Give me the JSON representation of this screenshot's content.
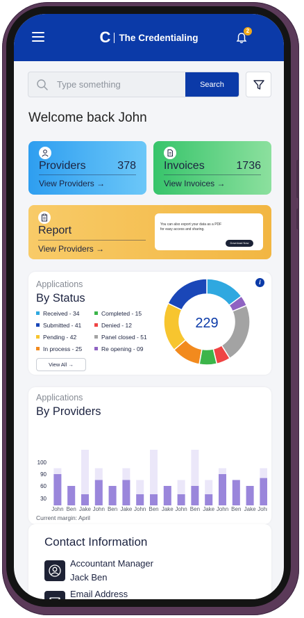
{
  "header": {
    "brand": "The Credentialing",
    "notification_count": "2"
  },
  "search": {
    "placeholder": "Type something",
    "button_label": "Search"
  },
  "welcome": "Welcome back John",
  "cards": {
    "providers": {
      "title": "Providers",
      "value": "378",
      "link": "View Providers →"
    },
    "invoices": {
      "title": "Invoices",
      "value": "1736",
      "link": "View Invoices →"
    },
    "report": {
      "title": "Report",
      "link": "View Providers →",
      "note": "You can also export your data as a PDF for easy access and sharing.",
      "download_label": "Download Now"
    }
  },
  "status_panel": {
    "kicker": "Applications",
    "heading": "By Status",
    "total": "229",
    "view_all": "View All →",
    "legend": [
      {
        "label": "Received - 34",
        "color": "#2fa8e0"
      },
      {
        "label": "Completed - 15",
        "color": "#3cb54a"
      },
      {
        "label": "Submitted - 41",
        "color": "#1a47b8"
      },
      {
        "label": "Denied - 12",
        "color": "#ef4444"
      },
      {
        "label": "Pending - 42",
        "color": "#f7c52f"
      },
      {
        "label": "Panel closed - 51",
        "color": "#a3a3a3"
      },
      {
        "label": "In process - 25",
        "color": "#f28a1e"
      },
      {
        "label": "Re opening - 09",
        "color": "#8f63c2"
      }
    ]
  },
  "providers_panel": {
    "kicker": "Applications",
    "heading": "By Providers",
    "footnote": "Current margin: April"
  },
  "chart_data": {
    "type": "bar",
    "categories": [
      "John",
      "Ben",
      "Jake",
      "John",
      "Ben",
      "Jake",
      "John",
      "Ben",
      "Jake",
      "John",
      "Ben",
      "Jake",
      "John",
      "Ben",
      "Jake",
      "John"
    ],
    "y_ticks": [
      "100",
      "90",
      "60",
      "30"
    ],
    "series": [
      {
        "values": [
          90,
          60,
          40,
          75,
          60,
          75,
          40,
          40,
          60,
          40,
          60,
          40,
          90,
          75,
          60,
          80
        ]
      },
      {
        "values": [
          95,
          60,
          115,
          95,
          60,
          95,
          75,
          115,
          60,
          75,
          115,
          75,
          95,
          75,
          60,
          95
        ]
      }
    ],
    "colors": {
      "primary": "#9a86db",
      "secondary": "#ebe7f9"
    }
  },
  "contact": {
    "title": "Contact Information",
    "items": [
      {
        "label": "Accountant Manager",
        "value": "Jack Ben"
      },
      {
        "label": "Email Address",
        "value": ""
      }
    ]
  }
}
